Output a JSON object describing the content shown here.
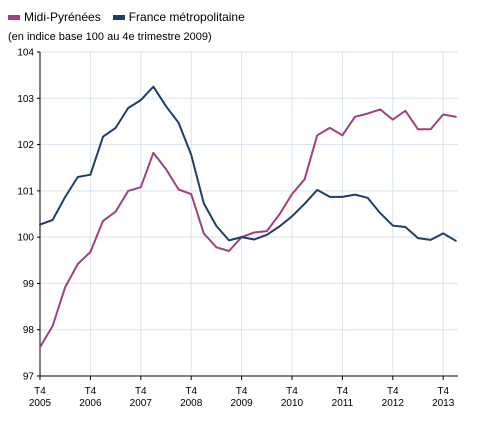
{
  "chart_data": {
    "type": "line",
    "title": "",
    "subtitle": "(en indice base 100 au 4e trimestre 2009)",
    "legend_position": "top-left",
    "grid": true,
    "ylim": [
      97,
      104
    ],
    "yticks": [
      97,
      98,
      99,
      100,
      101,
      102,
      103,
      104
    ],
    "xticks": [
      {
        "top": "T4",
        "bottom": "2005"
      },
      {
        "top": "T4",
        "bottom": "2006"
      },
      {
        "top": "T4",
        "bottom": "2007"
      },
      {
        "top": "T4",
        "bottom": "2008"
      },
      {
        "top": "T4",
        "bottom": "2009"
      },
      {
        "top": "T4",
        "bottom": "2010"
      },
      {
        "top": "T4",
        "bottom": "2011"
      },
      {
        "top": "T4",
        "bottom": "2012"
      },
      {
        "top": "T4",
        "bottom": "2013"
      }
    ],
    "x": [
      "T4 2005",
      "T1 2006",
      "T2 2006",
      "T3 2006",
      "T4 2006",
      "T1 2007",
      "T2 2007",
      "T3 2007",
      "T4 2007",
      "T1 2008",
      "T2 2008",
      "T3 2008",
      "T4 2008",
      "T1 2009",
      "T2 2009",
      "T3 2009",
      "T4 2009",
      "T1 2010",
      "T2 2010",
      "T3 2010",
      "T4 2010",
      "T1 2011",
      "T2 2011",
      "T3 2011",
      "T4 2011",
      "T1 2012",
      "T2 2012",
      "T3 2012",
      "T4 2012",
      "T1 2013",
      "T2 2013",
      "T3 2013",
      "T4 2013",
      "T1 2014"
    ],
    "series": [
      {
        "name": "Midi-Pyrénées",
        "color": "#a0417e",
        "values": [
          97.62,
          98.08,
          98.92,
          99.42,
          99.68,
          100.35,
          100.55,
          101.0,
          101.08,
          101.82,
          101.47,
          101.03,
          100.93,
          100.08,
          99.78,
          99.7,
          100.0,
          100.1,
          100.13,
          100.49,
          100.93,
          101.25,
          102.2,
          102.36,
          102.2,
          102.6,
          102.67,
          102.76,
          102.54,
          102.73,
          102.33,
          102.33,
          102.65,
          102.6
        ]
      },
      {
        "name": "France métropolitaine",
        "color": "#213d6a",
        "values": [
          100.27,
          100.37,
          100.87,
          101.3,
          101.35,
          102.17,
          102.36,
          102.79,
          102.96,
          103.25,
          102.83,
          102.47,
          101.78,
          100.73,
          100.24,
          99.93,
          100.0,
          99.95,
          100.05,
          100.23,
          100.45,
          100.72,
          101.02,
          100.87,
          100.87,
          100.92,
          100.85,
          100.52,
          100.25,
          100.22,
          99.98,
          99.94,
          100.08,
          99.92
        ]
      }
    ]
  }
}
